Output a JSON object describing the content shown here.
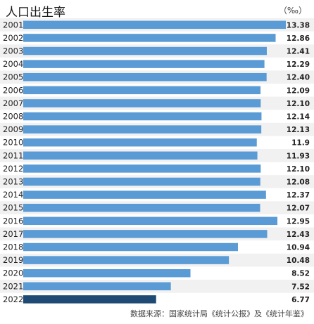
{
  "title": "人口出生率",
  "unit": "（‰）",
  "source": "数据来源：国家统计局《统计公报》及《统计年鉴》",
  "colors": {
    "bar": "#5b9bd5",
    "highlight": "#1e4a73",
    "stripe": "#f1f1f1"
  },
  "chart_data": {
    "type": "bar",
    "orientation": "horizontal",
    "title": "人口出生率",
    "unit": "（‰）",
    "categories": [
      "2001",
      "2002",
      "2003",
      "2004",
      "2005",
      "2006",
      "2007",
      "2008",
      "2009",
      "2010",
      "2011",
      "2012",
      "2013",
      "2014",
      "2015",
      "2016",
      "2017",
      "2018",
      "2019",
      "2020",
      "2021",
      "2022"
    ],
    "values": [
      13.38,
      12.86,
      12.41,
      12.29,
      12.4,
      12.09,
      12.1,
      12.14,
      12.13,
      11.9,
      11.93,
      12.1,
      12.08,
      12.37,
      12.07,
      12.95,
      12.43,
      10.94,
      10.48,
      8.52,
      7.52,
      6.77
    ],
    "labels": [
      "13.38",
      "12.86",
      "12.41",
      "12.29",
      "12.40",
      "12.09",
      "12.10",
      "12.14",
      "12.13",
      "11.9",
      "11.93",
      "12.10",
      "12.08",
      "12.37",
      "12.07",
      "12.95",
      "12.43",
      "10.94",
      "10.48",
      "8.52",
      "7.52",
      "6.77"
    ],
    "highlight_category": "2022",
    "xlim": [
      0,
      13.38
    ]
  }
}
